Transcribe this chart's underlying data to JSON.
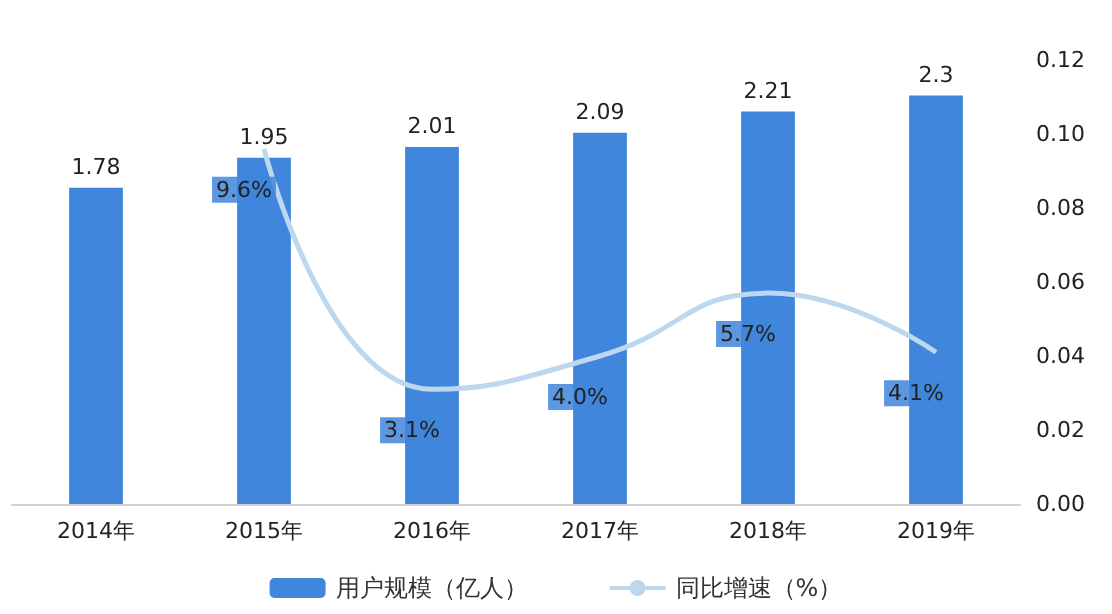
{
  "chart_data": {
    "type": "bar",
    "categories": [
      "2014年",
      "2015年",
      "2016年",
      "2017年",
      "2018年",
      "2019年"
    ],
    "series": [
      {
        "name": "用户规模（亿人）",
        "color": "#3f86dc",
        "values": [
          1.78,
          1.95,
          2.01,
          2.09,
          2.21,
          2.3
        ],
        "value_labels": [
          "1.78",
          "1.95",
          "2.01",
          "2.09",
          "2.21",
          "2.3"
        ]
      },
      {
        "name": "同比增速（%）",
        "type": "line",
        "axis": "y2",
        "color": "#bcd7ee",
        "values": [
          null,
          0.096,
          0.031,
          0.04,
          0.057,
          0.041
        ],
        "value_labels": [
          null,
          "9.6%",
          "3.1%",
          "4.0%",
          "5.7%",
          "4.1%"
        ]
      }
    ],
    "y2lim": [
      0,
      0.12
    ],
    "y2ticks": [
      {
        "value": 0,
        "label": "0.00"
      },
      {
        "value": 0.02,
        "label": "0.02"
      },
      {
        "value": 0.04,
        "label": "0.04"
      },
      {
        "value": 0.06,
        "label": "0.06"
      },
      {
        "value": 0.08,
        "label": "0.08"
      },
      {
        "value": 0.1,
        "label": "0.10"
      },
      {
        "value": 0.12,
        "label": "0.12"
      }
    ],
    "legend": "bottom",
    "grid": false,
    "marker": "none"
  }
}
